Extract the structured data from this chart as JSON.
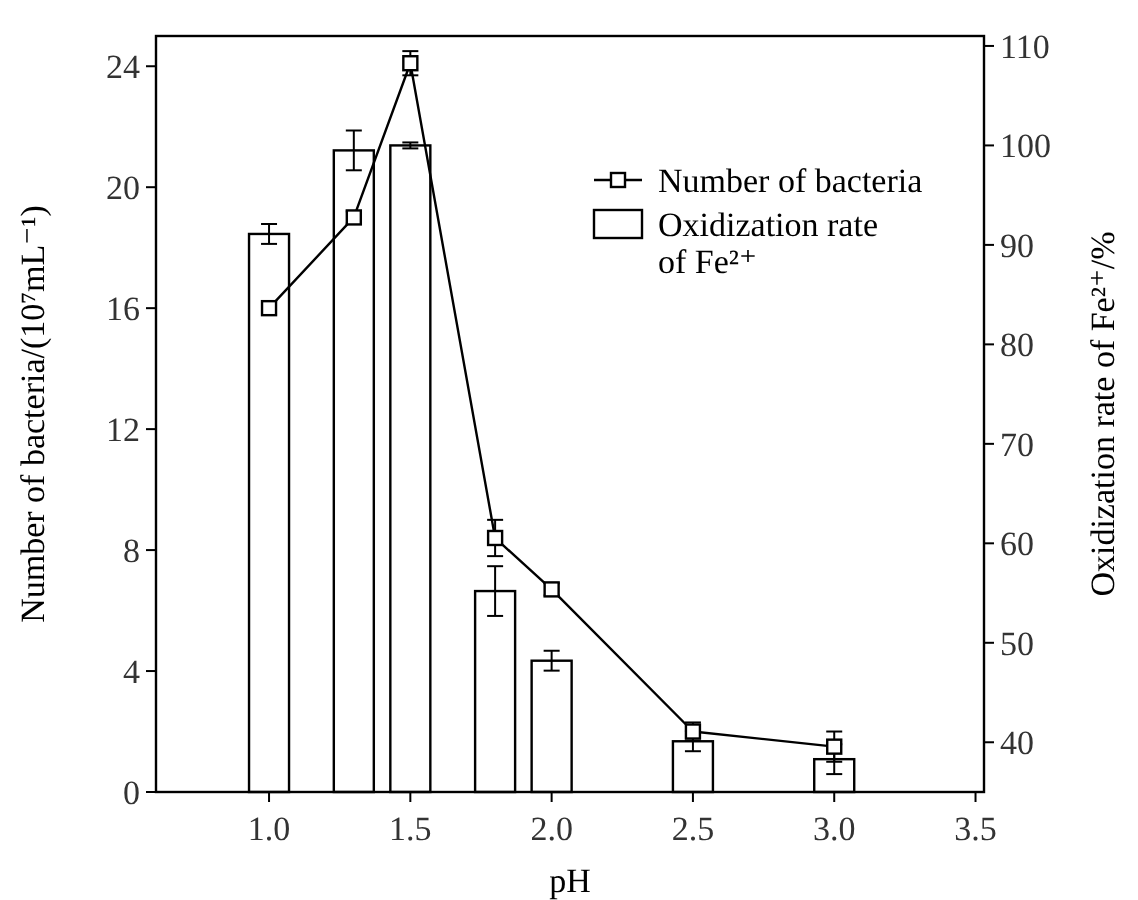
{
  "chart_data": {
    "type": "bar",
    "xlabel": "pH",
    "ylabel": "Number of bacteria/(10⁷mL⁻¹)",
    "y2label": "Oxidization rate of Fe²⁺/%",
    "x": [
      1.0,
      1.3,
      1.5,
      1.8,
      2.0,
      2.5,
      3.0
    ],
    "xlim": [
      0.6,
      3.53
    ],
    "xticks": [
      {
        "value": 1,
        "label": "1.0"
      },
      1.5,
      {
        "value": 2,
        "label": "2.0"
      },
      2.5,
      {
        "value": 3,
        "label": "3.0"
      },
      3.5
    ],
    "ylim": [
      0,
      25
    ],
    "yticks": [
      0,
      4,
      8,
      12,
      16,
      20,
      24
    ],
    "y2lim": [
      35,
      111
    ],
    "y2ticks": [
      40,
      50,
      60,
      70,
      80,
      90,
      100,
      110
    ],
    "series": [
      {
        "name": "Oxidization rate of Fe²⁺",
        "axis": "y2",
        "color": "#ffffff",
        "values": [
          91.1,
          99.5,
          100,
          55.2,
          48.2,
          40.1,
          38.3
        ],
        "errors": [
          1,
          2,
          0.3,
          2.5,
          1,
          1,
          1.5
        ]
      },
      {
        "name": "Number of bacteria",
        "type": "line",
        "color": "#000000",
        "values": [
          16.0,
          19.0,
          24.1,
          8.4,
          6.7,
          2.0,
          1.5
        ],
        "errors": [
          0.2,
          0.2,
          0.4,
          0.6,
          0.2,
          0.3,
          0.5
        ]
      }
    ],
    "marker": "square",
    "line_style": "solid",
    "legend": "top right",
    "grid": false
  }
}
